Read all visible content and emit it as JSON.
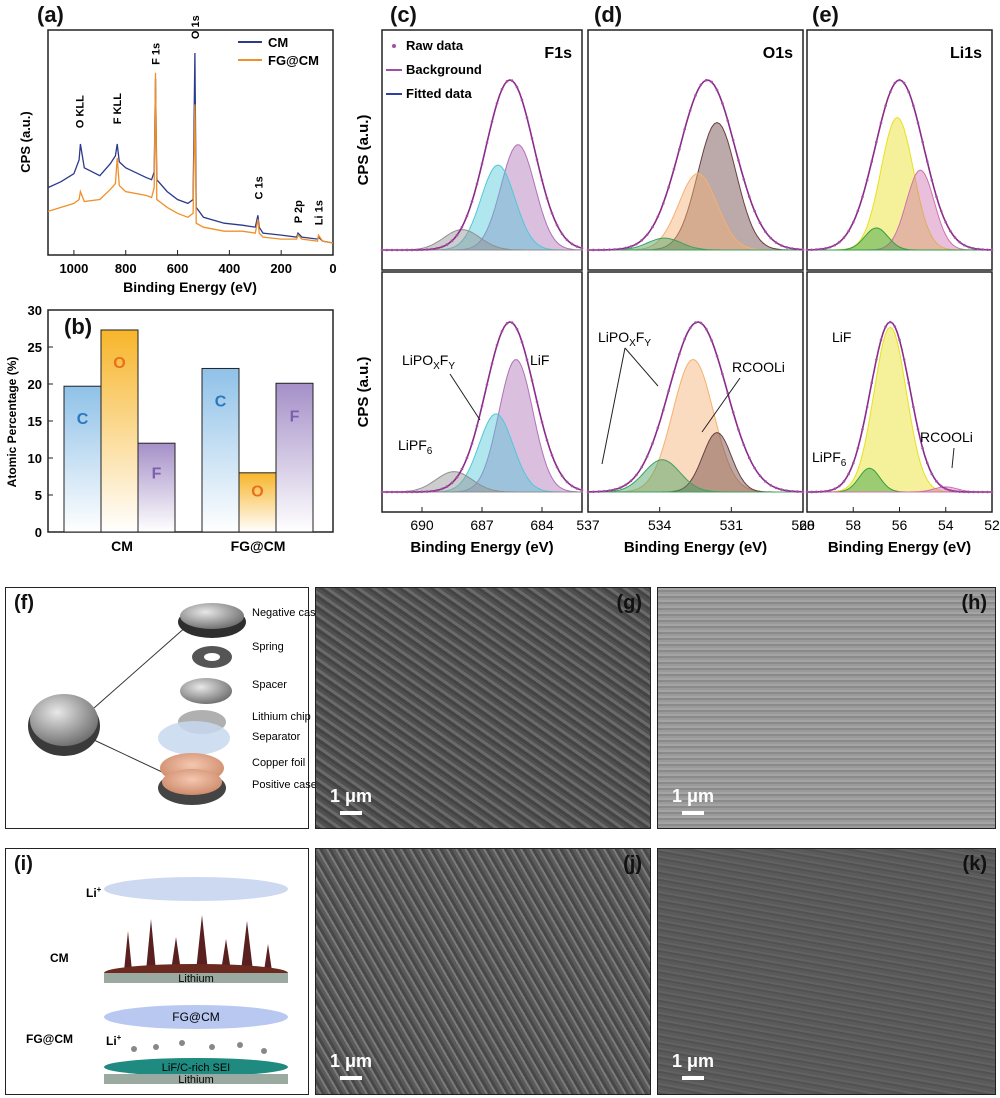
{
  "panels": {
    "a": "(a)",
    "b": "(b)",
    "c": "(c)",
    "d": "(d)",
    "e": "(e)",
    "f": "(f)",
    "g": "(g)",
    "h": "(h)",
    "i": "(i)",
    "j": "(j)",
    "k": "(k)"
  },
  "chart_data": [
    {
      "id": "a",
      "type": "line",
      "xlabel": "Binding Energy (eV)",
      "ylabel": "CPS (a.u.)",
      "xlim": [
        1100,
        0
      ],
      "xticks": [
        1000,
        800,
        600,
        400,
        200,
        0
      ],
      "legend_position": "top-right",
      "series": [
        {
          "name": "CM",
          "color": "#2b3a8c",
          "x": [
            1100,
            1050,
            1000,
            980,
            975,
            960,
            900,
            860,
            840,
            833,
            825,
            800,
            720,
            700,
            690,
            685,
            680,
            640,
            600,
            560,
            540,
            533,
            528,
            500,
            420,
            350,
            300,
            290,
            285,
            270,
            200,
            140,
            135,
            120,
            60,
            56,
            40,
            0
          ],
          "y": [
            0.3,
            0.33,
            0.37,
            0.44,
            0.52,
            0.4,
            0.36,
            0.42,
            0.46,
            0.52,
            0.43,
            0.4,
            0.35,
            0.34,
            0.38,
            0.85,
            0.34,
            0.28,
            0.24,
            0.22,
            0.24,
            0.98,
            0.2,
            0.15,
            0.12,
            0.11,
            0.1,
            0.16,
            0.1,
            0.07,
            0.06,
            0.05,
            0.07,
            0.05,
            0.04,
            0.05,
            0.03,
            0.02
          ]
        },
        {
          "name": "FG@CM",
          "color": "#f0902a",
          "x": [
            1100,
            1050,
            1000,
            980,
            975,
            960,
            900,
            860,
            840,
            833,
            825,
            800,
            720,
            700,
            690,
            685,
            680,
            640,
            600,
            560,
            540,
            533,
            528,
            500,
            420,
            350,
            300,
            290,
            285,
            270,
            200,
            140,
            135,
            120,
            60,
            56,
            40,
            0
          ],
          "y": [
            0.18,
            0.2,
            0.22,
            0.24,
            0.28,
            0.23,
            0.24,
            0.29,
            0.32,
            0.45,
            0.31,
            0.28,
            0.26,
            0.25,
            0.3,
            0.88,
            0.24,
            0.2,
            0.17,
            0.15,
            0.17,
            0.72,
            0.12,
            0.1,
            0.08,
            0.08,
            0.07,
            0.14,
            0.07,
            0.05,
            0.04,
            0.04,
            0.06,
            0.04,
            0.03,
            0.06,
            0.03,
            0.02
          ]
        }
      ],
      "annotations": [
        {
          "text": "O KLL",
          "x": 978,
          "y": 0.6
        },
        {
          "text": "F KLL",
          "x": 833,
          "y": 0.62
        },
        {
          "text": "F 1s",
          "x": 685,
          "y": 0.92
        },
        {
          "text": "O 1s",
          "x": 533,
          "y": 1.05
        },
        {
          "text": "C 1s",
          "x": 288,
          "y": 0.24
        },
        {
          "text": "P 2p",
          "x": 136,
          "y": 0.12
        },
        {
          "text": "Li 1s",
          "x": 56,
          "y": 0.11
        }
      ]
    },
    {
      "id": "b",
      "type": "bar",
      "categories": [
        "CM",
        "FG@CM"
      ],
      "ylabel": "Atomic Percentage (%)",
      "ylim": [
        0,
        30
      ],
      "yticks": [
        0,
        5,
        10,
        15,
        20,
        25,
        30
      ],
      "series": [
        {
          "name": "C",
          "values": [
            19.7,
            22.1
          ],
          "color": "#8fc1e8"
        },
        {
          "name": "O",
          "values": [
            27.3,
            8.0
          ],
          "color": "#f7b52a"
        },
        {
          "name": "F",
          "values": [
            12.0,
            20.1
          ],
          "color": "#a590c8"
        }
      ],
      "bar_label_colors": {
        "C": "#2a78c0",
        "O": "#e8701a",
        "F": "#7d5fb0"
      }
    },
    {
      "id": "c",
      "type": "line",
      "title": "F1s",
      "xlabel": "Binding Energy (eV)",
      "ylabel": "CPS (a.u.)",
      "xlim": [
        692,
        682
      ],
      "xticks": [
        690,
        687,
        684
      ],
      "legend": [
        "Raw data",
        "Background",
        "Fitted data"
      ],
      "top": {
        "envelope": {
          "center": 685.6,
          "height": 1.0,
          "width": 1.2
        },
        "peaks": [
          {
            "center": 685.2,
            "height": 0.62,
            "width": 0.85,
            "color": "#b070b8"
          },
          {
            "center": 686.2,
            "height": 0.5,
            "width": 0.85,
            "color": "#50c8d8"
          },
          {
            "center": 688.0,
            "height": 0.12,
            "width": 0.9,
            "color": "#909090"
          }
        ]
      },
      "bottom": {
        "envelope": {
          "center": 685.6,
          "height": 1.0,
          "width": 1.2
        },
        "peaks": [
          {
            "center": 685.3,
            "height": 0.78,
            "width": 0.85,
            "color": "#b070b8"
          },
          {
            "center": 686.3,
            "height": 0.46,
            "width": 0.85,
            "color": "#50c8d8"
          },
          {
            "center": 688.4,
            "height": 0.12,
            "width": 0.9,
            "color": "#909090"
          }
        ],
        "labels": [
          "LiPOXFY",
          "LiF",
          "LiPF6"
        ]
      }
    },
    {
      "id": "d",
      "type": "line",
      "title": "O1s",
      "xlabel": "Binding Energy (eV)",
      "xlim": [
        537,
        528
      ],
      "xticks": [
        537,
        534,
        531,
        528
      ],
      "top": {
        "envelope": {
          "center": 532.0,
          "height": 1.0,
          "width": 1.15
        },
        "peaks": [
          {
            "center": 531.6,
            "height": 0.75,
            "width": 0.8,
            "color": "#6a4040"
          },
          {
            "center": 532.4,
            "height": 0.45,
            "width": 0.8,
            "color": "#f5b070"
          },
          {
            "center": 533.8,
            "height": 0.07,
            "width": 0.7,
            "color": "#40a060"
          }
        ]
      },
      "bottom": {
        "envelope": {
          "center": 532.4,
          "height": 1.0,
          "width": 1.2
        },
        "peaks": [
          {
            "center": 532.6,
            "height": 0.78,
            "width": 0.85,
            "color": "#f5b070"
          },
          {
            "center": 531.6,
            "height": 0.35,
            "width": 0.6,
            "color": "#6a4040"
          },
          {
            "center": 533.9,
            "height": 0.19,
            "width": 0.75,
            "color": "#40a060"
          }
        ],
        "labels": [
          "LiPOXFY",
          "RCOOLi"
        ]
      }
    },
    {
      "id": "e",
      "type": "line",
      "title": "Li1s",
      "xlabel": "Binding Energy (eV)",
      "xlim": [
        60,
        52
      ],
      "xticks": [
        60,
        58,
        56,
        54,
        52
      ],
      "top": {
        "envelope": {
          "center": 56.0,
          "height": 1.0,
          "width": 1.05
        },
        "peaks": [
          {
            "center": 56.1,
            "height": 0.78,
            "width": 0.7,
            "color": "#e8e020"
          },
          {
            "center": 55.1,
            "height": 0.47,
            "width": 0.6,
            "color": "#d070b0"
          },
          {
            "center": 57.0,
            "height": 0.13,
            "width": 0.5,
            "color": "#30a040"
          }
        ]
      },
      "bottom": {
        "envelope": {
          "center": 56.4,
          "height": 1.0,
          "width": 0.85
        },
        "peaks": [
          {
            "center": 56.4,
            "height": 0.97,
            "width": 0.7,
            "color": "#e8e020"
          },
          {
            "center": 57.3,
            "height": 0.14,
            "width": 0.45,
            "color": "#30a040"
          },
          {
            "center": 54.0,
            "height": 0.03,
            "width": 0.5,
            "color": "#d070b0"
          }
        ],
        "labels": [
          "LiF",
          "LiPF6",
          "RCOOLi"
        ]
      }
    }
  ],
  "b_text": {
    "cm": "CM",
    "fg": "FG@CM"
  },
  "f_labels": [
    "Negative case",
    "Spring",
    "Spacer",
    "Lithium chip",
    "Separator",
    "Copper foil",
    "Positive case"
  ],
  "i_labels": {
    "li_top": "Li",
    "li_top_sup": "+",
    "cm": "CM",
    "lithium_top": "Lithium",
    "fgcm_disc": "FG@CM",
    "fgcm_side": "FG@CM",
    "li_bottom": "Li",
    "li_bottom_sup": "+",
    "sei": "LiF/C-rich SEI",
    "lithium_bottom": "Lithium"
  },
  "scalebar": "1 μm"
}
